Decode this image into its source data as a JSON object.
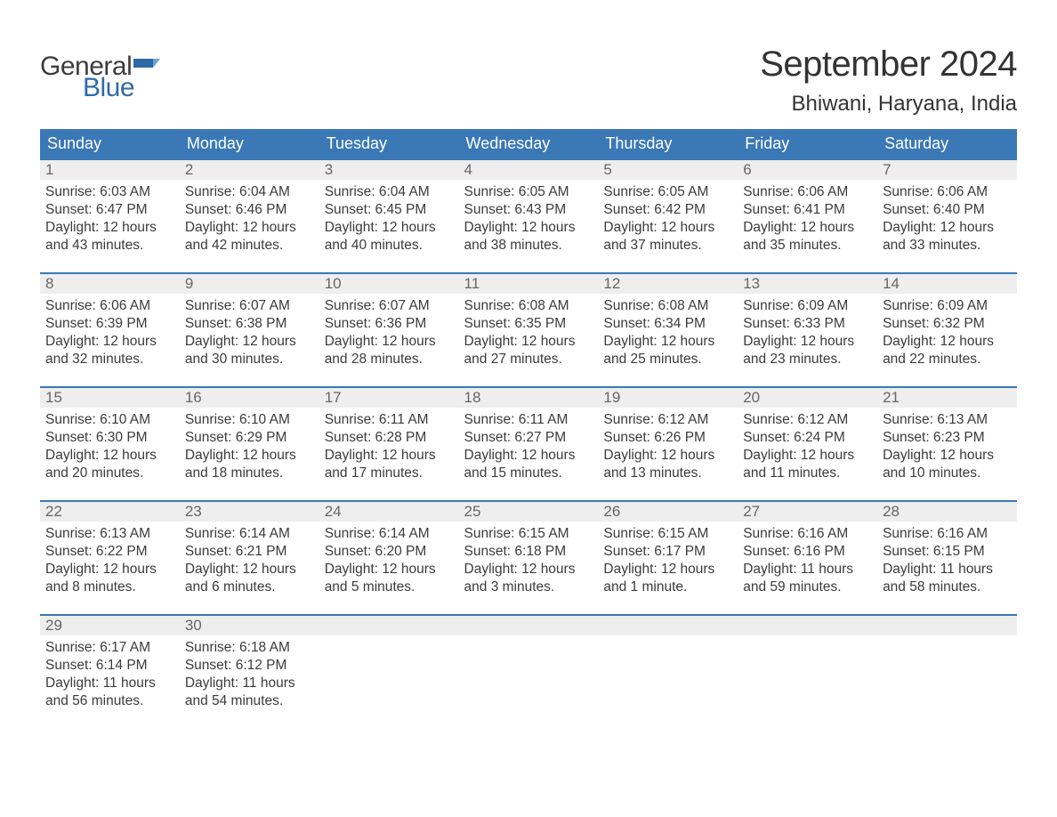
{
  "logo": {
    "word1": "General",
    "word2": "Blue",
    "color_text": "#3d3d3d",
    "color_blue": "#2f6aa8"
  },
  "title": "September 2024",
  "location": "Bhiwani, Haryana, India",
  "colors": {
    "header_bg": "#3a78b6",
    "header_text": "#ffffff",
    "daynum_bg": "#eeeeee",
    "daynum_text": "#666666",
    "border_top": "#3a78b6",
    "body_text": "#3b3b3b",
    "page_bg": "#ffffff"
  },
  "fonts": {
    "title_size_pt": 30,
    "location_size_pt": 18,
    "header_size_pt": 14,
    "body_size_pt": 11.5
  },
  "day_headers": [
    "Sunday",
    "Monday",
    "Tuesday",
    "Wednesday",
    "Thursday",
    "Friday",
    "Saturday"
  ],
  "weeks": [
    [
      {
        "num": "1",
        "sunrise": "Sunrise: 6:03 AM",
        "sunset": "Sunset: 6:47 PM",
        "day1": "Daylight: 12 hours",
        "day2": "and 43 minutes."
      },
      {
        "num": "2",
        "sunrise": "Sunrise: 6:04 AM",
        "sunset": "Sunset: 6:46 PM",
        "day1": "Daylight: 12 hours",
        "day2": "and 42 minutes."
      },
      {
        "num": "3",
        "sunrise": "Sunrise: 6:04 AM",
        "sunset": "Sunset: 6:45 PM",
        "day1": "Daylight: 12 hours",
        "day2": "and 40 minutes."
      },
      {
        "num": "4",
        "sunrise": "Sunrise: 6:05 AM",
        "sunset": "Sunset: 6:43 PM",
        "day1": "Daylight: 12 hours",
        "day2": "and 38 minutes."
      },
      {
        "num": "5",
        "sunrise": "Sunrise: 6:05 AM",
        "sunset": "Sunset: 6:42 PM",
        "day1": "Daylight: 12 hours",
        "day2": "and 37 minutes."
      },
      {
        "num": "6",
        "sunrise": "Sunrise: 6:06 AM",
        "sunset": "Sunset: 6:41 PM",
        "day1": "Daylight: 12 hours",
        "day2": "and 35 minutes."
      },
      {
        "num": "7",
        "sunrise": "Sunrise: 6:06 AM",
        "sunset": "Sunset: 6:40 PM",
        "day1": "Daylight: 12 hours",
        "day2": "and 33 minutes."
      }
    ],
    [
      {
        "num": "8",
        "sunrise": "Sunrise: 6:06 AM",
        "sunset": "Sunset: 6:39 PM",
        "day1": "Daylight: 12 hours",
        "day2": "and 32 minutes."
      },
      {
        "num": "9",
        "sunrise": "Sunrise: 6:07 AM",
        "sunset": "Sunset: 6:38 PM",
        "day1": "Daylight: 12 hours",
        "day2": "and 30 minutes."
      },
      {
        "num": "10",
        "sunrise": "Sunrise: 6:07 AM",
        "sunset": "Sunset: 6:36 PM",
        "day1": "Daylight: 12 hours",
        "day2": "and 28 minutes."
      },
      {
        "num": "11",
        "sunrise": "Sunrise: 6:08 AM",
        "sunset": "Sunset: 6:35 PM",
        "day1": "Daylight: 12 hours",
        "day2": "and 27 minutes."
      },
      {
        "num": "12",
        "sunrise": "Sunrise: 6:08 AM",
        "sunset": "Sunset: 6:34 PM",
        "day1": "Daylight: 12 hours",
        "day2": "and 25 minutes."
      },
      {
        "num": "13",
        "sunrise": "Sunrise: 6:09 AM",
        "sunset": "Sunset: 6:33 PM",
        "day1": "Daylight: 12 hours",
        "day2": "and 23 minutes."
      },
      {
        "num": "14",
        "sunrise": "Sunrise: 6:09 AM",
        "sunset": "Sunset: 6:32 PM",
        "day1": "Daylight: 12 hours",
        "day2": "and 22 minutes."
      }
    ],
    [
      {
        "num": "15",
        "sunrise": "Sunrise: 6:10 AM",
        "sunset": "Sunset: 6:30 PM",
        "day1": "Daylight: 12 hours",
        "day2": "and 20 minutes."
      },
      {
        "num": "16",
        "sunrise": "Sunrise: 6:10 AM",
        "sunset": "Sunset: 6:29 PM",
        "day1": "Daylight: 12 hours",
        "day2": "and 18 minutes."
      },
      {
        "num": "17",
        "sunrise": "Sunrise: 6:11 AM",
        "sunset": "Sunset: 6:28 PM",
        "day1": "Daylight: 12 hours",
        "day2": "and 17 minutes."
      },
      {
        "num": "18",
        "sunrise": "Sunrise: 6:11 AM",
        "sunset": "Sunset: 6:27 PM",
        "day1": "Daylight: 12 hours",
        "day2": "and 15 minutes."
      },
      {
        "num": "19",
        "sunrise": "Sunrise: 6:12 AM",
        "sunset": "Sunset: 6:26 PM",
        "day1": "Daylight: 12 hours",
        "day2": "and 13 minutes."
      },
      {
        "num": "20",
        "sunrise": "Sunrise: 6:12 AM",
        "sunset": "Sunset: 6:24 PM",
        "day1": "Daylight: 12 hours",
        "day2": "and 11 minutes."
      },
      {
        "num": "21",
        "sunrise": "Sunrise: 6:13 AM",
        "sunset": "Sunset: 6:23 PM",
        "day1": "Daylight: 12 hours",
        "day2": "and 10 minutes."
      }
    ],
    [
      {
        "num": "22",
        "sunrise": "Sunrise: 6:13 AM",
        "sunset": "Sunset: 6:22 PM",
        "day1": "Daylight: 12 hours",
        "day2": "and 8 minutes."
      },
      {
        "num": "23",
        "sunrise": "Sunrise: 6:14 AM",
        "sunset": "Sunset: 6:21 PM",
        "day1": "Daylight: 12 hours",
        "day2": "and 6 minutes."
      },
      {
        "num": "24",
        "sunrise": "Sunrise: 6:14 AM",
        "sunset": "Sunset: 6:20 PM",
        "day1": "Daylight: 12 hours",
        "day2": "and 5 minutes."
      },
      {
        "num": "25",
        "sunrise": "Sunrise: 6:15 AM",
        "sunset": "Sunset: 6:18 PM",
        "day1": "Daylight: 12 hours",
        "day2": "and 3 minutes."
      },
      {
        "num": "26",
        "sunrise": "Sunrise: 6:15 AM",
        "sunset": "Sunset: 6:17 PM",
        "day1": "Daylight: 12 hours",
        "day2": "and 1 minute."
      },
      {
        "num": "27",
        "sunrise": "Sunrise: 6:16 AM",
        "sunset": "Sunset: 6:16 PM",
        "day1": "Daylight: 11 hours",
        "day2": "and 59 minutes."
      },
      {
        "num": "28",
        "sunrise": "Sunrise: 6:16 AM",
        "sunset": "Sunset: 6:15 PM",
        "day1": "Daylight: 11 hours",
        "day2": "and 58 minutes."
      }
    ],
    [
      {
        "num": "29",
        "sunrise": "Sunrise: 6:17 AM",
        "sunset": "Sunset: 6:14 PM",
        "day1": "Daylight: 11 hours",
        "day2": "and 56 minutes."
      },
      {
        "num": "30",
        "sunrise": "Sunrise: 6:18 AM",
        "sunset": "Sunset: 6:12 PM",
        "day1": "Daylight: 11 hours",
        "day2": "and 54 minutes."
      },
      {
        "empty": true
      },
      {
        "empty": true
      },
      {
        "empty": true
      },
      {
        "empty": true
      },
      {
        "empty": true
      }
    ]
  ]
}
